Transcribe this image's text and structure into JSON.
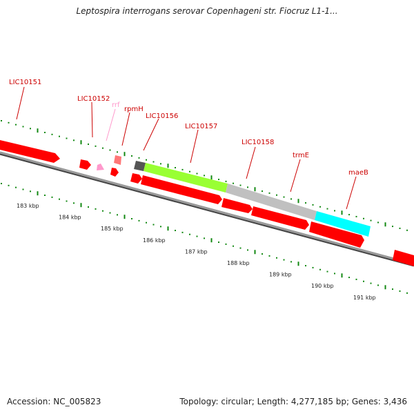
{
  "header": {
    "title": "Leptospira interrogans serovar Copenhageni str. Fiocruz L1-1..."
  },
  "footer": {
    "accession": "Accession: NC_005823",
    "summary": "Topology: circular; Length: 4,277,185 bp; Genes: 3,436"
  },
  "colors": {
    "gene_forward": "#ff0000",
    "label": "#cc0000",
    "rrf": "#ff99cc",
    "LIC10156": "#555555",
    "LIC10157": "#99ff33",
    "LIC10158": "#bbbbbb",
    "trmE": "#00ffff",
    "backbone": "#888888",
    "tick": "#118811"
  },
  "scale": {
    "ticks": [
      "183 kbp",
      "184 kbp",
      "185 kbp",
      "186 kbp",
      "187 kbp",
      "188 kbp",
      "189 kbp",
      "190 kbp",
      "191 kbp"
    ]
  },
  "genes": [
    {
      "id": "g-left",
      "label": ""
    },
    {
      "id": "g-small1",
      "label": ""
    },
    {
      "id": "LIC10151",
      "label": "LIC10151"
    },
    {
      "id": "LIC10152",
      "label": "LIC10152"
    },
    {
      "id": "rrf",
      "label": "rrf"
    },
    {
      "id": "rpmH",
      "label": "rpmH"
    },
    {
      "id": "LIC10156",
      "label": "LIC10156"
    },
    {
      "id": "LIC10157",
      "label": "LIC10157"
    },
    {
      "id": "LIC10158",
      "label": "LIC10158"
    },
    {
      "id": "trmE",
      "label": "trmE"
    },
    {
      "id": "maeB",
      "label": "maeB"
    }
  ]
}
